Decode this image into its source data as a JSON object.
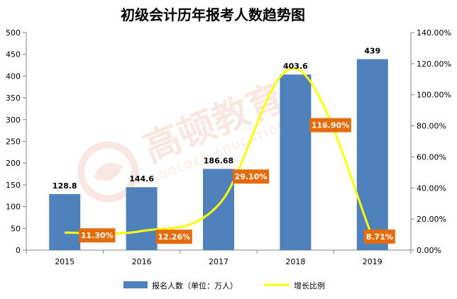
{
  "chart_data": {
    "type": "bar",
    "title": "初级会计历年报考人数趋势图",
    "categories": [
      "2015",
      "2016",
      "2017",
      "2018",
      "2019"
    ],
    "series": [
      {
        "name": "报名人数（单位：万人）",
        "type": "bar",
        "axis": "left",
        "values": [
          128.8,
          144.6,
          186.68,
          403.6,
          439
        ],
        "data_labels": [
          "128.8",
          "144.6",
          "186.68",
          "403.6",
          "439"
        ]
      },
      {
        "name": "增长比例",
        "type": "line",
        "axis": "right",
        "values": [
          11.3,
          12.26,
          29.1,
          116.9,
          8.71
        ],
        "data_labels": [
          "11.30%",
          "12.26%",
          "29.10%",
          "116.90%",
          "8.71%"
        ]
      }
    ],
    "y_left": {
      "range": [
        0,
        500
      ],
      "ticks": [
        "0",
        "50",
        "100",
        "150",
        "200",
        "250",
        "300",
        "350",
        "400",
        "450",
        "500"
      ]
    },
    "y_right": {
      "range": [
        0,
        140
      ],
      "ticks": [
        "0.00%",
        "20.00%",
        "40.00%",
        "60.00%",
        "80.00%",
        "100.00%",
        "120.00%",
        "140.00%"
      ]
    },
    "grid": false,
    "legend_position": "bottom",
    "watermark": {
      "text": "高顿教育",
      "subtext": "GOLDEN EDUCATION"
    },
    "colors": {
      "bar": "#4f81bd",
      "line": "#ffff00",
      "label_box": "#e46c0a",
      "label_box_text": "#ffffff",
      "watermark": "#f3d5cb"
    }
  }
}
